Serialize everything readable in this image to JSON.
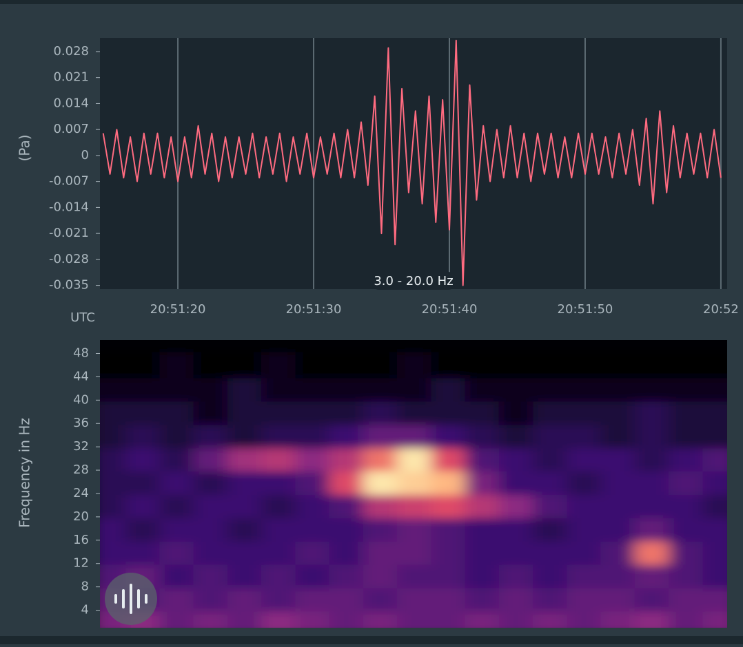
{
  "chart_data": [
    {
      "type": "line",
      "y_label": "(Pa)",
      "x_label": "UTC",
      "annotation": "3.0 - 20.0 Hz",
      "color": "#ff6b80",
      "xlim": [
        14.26,
        60.46
      ],
      "ylim": [
        -0.036,
        0.0317
      ],
      "xticks": [
        {
          "value": 20,
          "label": "20:51:20"
        },
        {
          "value": 30,
          "label": "20:51:30"
        },
        {
          "value": 40,
          "label": "20:51:40"
        },
        {
          "value": 50,
          "label": "20:51:50"
        },
        {
          "value": 60,
          "label": "20:52"
        }
      ],
      "yticks": [
        0.028,
        0.021,
        0.014,
        0.007,
        0,
        -0.007,
        -0.014,
        -0.021,
        -0.028,
        -0.035
      ],
      "grid": true,
      "x": [
        14.5,
        15,
        15.5,
        16,
        16.5,
        17,
        17.5,
        18,
        18.5,
        19,
        19.5,
        20,
        20.5,
        21,
        21.5,
        22,
        22.5,
        23,
        23.5,
        24,
        24.5,
        25,
        25.5,
        26,
        26.5,
        27,
        27.5,
        28,
        28.5,
        29,
        29.5,
        30,
        30.5,
        31,
        31.5,
        32,
        32.5,
        33,
        33.5,
        34,
        34.5,
        35,
        35.5,
        36,
        36.5,
        37,
        37.5,
        38,
        38.5,
        39,
        39.5,
        40,
        40.5,
        41,
        41.5,
        42,
        42.5,
        43,
        43.5,
        44,
        44.5,
        45,
        45.5,
        46,
        46.5,
        47,
        47.5,
        48,
        48.5,
        49,
        49.5,
        50,
        50.5,
        51,
        51.5,
        52,
        52.5,
        53,
        53.5,
        54,
        54.5,
        55,
        55.5,
        56,
        56.5,
        57,
        57.5,
        58,
        58.5,
        59,
        59.5,
        60
      ],
      "values": [
        0.006,
        -0.005,
        0.007,
        -0.006,
        0.005,
        -0.007,
        0.006,
        -0.005,
        0.006,
        -0.006,
        0.005,
        -0.007,
        0.005,
        -0.006,
        0.008,
        -0.005,
        0.006,
        -0.007,
        0.005,
        -0.006,
        0.005,
        -0.005,
        0.006,
        -0.006,
        0.005,
        -0.005,
        0.006,
        -0.007,
        0.005,
        -0.005,
        0.006,
        -0.006,
        0.005,
        -0.005,
        0.006,
        -0.006,
        0.007,
        -0.006,
        0.009,
        -0.008,
        0.016,
        -0.021,
        0.029,
        -0.024,
        0.018,
        -0.01,
        0.012,
        -0.013,
        0.016,
        -0.018,
        0.015,
        -0.02,
        0.031,
        -0.035,
        0.019,
        -0.012,
        0.008,
        -0.007,
        0.007,
        -0.006,
        0.008,
        -0.006,
        0.006,
        -0.007,
        0.006,
        -0.005,
        0.006,
        -0.006,
        0.005,
        -0.006,
        0.006,
        -0.005,
        0.006,
        -0.005,
        0.005,
        -0.006,
        0.006,
        -0.005,
        0.007,
        -0.008,
        0.01,
        -0.013,
        0.012,
        -0.01,
        0.008,
        -0.006,
        0.006,
        -0.005,
        0.006,
        -0.006,
        0.007,
        -0.006
      ]
    },
    {
      "type": "heatmap",
      "y_label": "Frequency in Hz",
      "xlim": [
        14.26,
        60.46
      ],
      "ylim": [
        1,
        50.3
      ],
      "yticks": [
        4,
        8,
        12,
        16,
        20,
        24,
        28,
        32,
        36,
        40,
        44,
        48
      ],
      "colormap": [
        "#000004",
        "#3b0f70",
        "#8c2981",
        "#de4968",
        "#fe9f6d",
        "#fcfdbf"
      ],
      "x": [
        15,
        17.5,
        20,
        22.5,
        25,
        27.5,
        30,
        32.5,
        35,
        37.5,
        40,
        42.5,
        45,
        47.5,
        50,
        52.5,
        55,
        57.5,
        60
      ],
      "y": [
        2,
        6,
        10,
        14,
        18,
        22,
        26,
        30,
        34,
        38,
        42,
        46
      ],
      "z": [
        [
          0.35,
          0.4,
          0.3,
          0.35,
          0.3,
          0.4,
          0.35,
          0.3,
          0.35,
          0.3,
          0.3,
          0.35,
          0.3,
          0.35,
          0.3,
          0.35,
          0.4,
          0.3,
          0.35
        ],
        [
          0.3,
          0.25,
          0.3,
          0.25,
          0.3,
          0.25,
          0.3,
          0.3,
          0.25,
          0.3,
          0.3,
          0.25,
          0.3,
          0.25,
          0.3,
          0.3,
          0.25,
          0.3,
          0.3
        ],
        [
          0.25,
          0.3,
          0.2,
          0.25,
          0.2,
          0.25,
          0.2,
          0.25,
          0.3,
          0.25,
          0.25,
          0.2,
          0.25,
          0.2,
          0.25,
          0.25,
          0.3,
          0.25,
          0.2
        ],
        [
          0.2,
          0.2,
          0.25,
          0.2,
          0.2,
          0.2,
          0.25,
          0.2,
          0.3,
          0.3,
          0.25,
          0.2,
          0.2,
          0.2,
          0.2,
          0.25,
          0.7,
          0.25,
          0.2
        ],
        [
          0.2,
          0.15,
          0.2,
          0.2,
          0.15,
          0.2,
          0.2,
          0.2,
          0.25,
          0.3,
          0.25,
          0.2,
          0.2,
          0.15,
          0.2,
          0.2,
          0.3,
          0.2,
          0.2
        ],
        [
          0.15,
          0.2,
          0.15,
          0.2,
          0.2,
          0.15,
          0.2,
          0.25,
          0.5,
          0.55,
          0.6,
          0.5,
          0.4,
          0.25,
          0.2,
          0.2,
          0.2,
          0.2,
          0.15
        ],
        [
          0.15,
          0.15,
          0.2,
          0.15,
          0.2,
          0.2,
          0.25,
          0.6,
          0.95,
          0.9,
          0.85,
          0.35,
          0.2,
          0.2,
          0.15,
          0.2,
          0.2,
          0.25,
          0.2
        ],
        [
          0.15,
          0.2,
          0.15,
          0.3,
          0.45,
          0.5,
          0.4,
          0.5,
          0.7,
          0.95,
          0.6,
          0.25,
          0.2,
          0.15,
          0.2,
          0.2,
          0.15,
          0.2,
          0.25
        ],
        [
          0.1,
          0.15,
          0.1,
          0.15,
          0.1,
          0.15,
          0.15,
          0.2,
          0.3,
          0.3,
          0.2,
          0.15,
          0.1,
          0.15,
          0.15,
          0.1,
          0.15,
          0.1,
          0.1
        ],
        [
          0.1,
          0.1,
          0.1,
          0.05,
          0.1,
          0.1,
          0.1,
          0.1,
          0.15,
          0.1,
          0.1,
          0.1,
          0.05,
          0.1,
          0.1,
          0.1,
          0.15,
          0.1,
          0.1
        ],
        [
          0.05,
          0.05,
          0.05,
          0.05,
          0.1,
          0.05,
          0.05,
          0.05,
          0.05,
          0.05,
          0.1,
          0.05,
          0.05,
          0.05,
          0.05,
          0.05,
          0.05,
          0.05,
          0.05
        ],
        [
          0,
          0,
          0.05,
          0,
          0,
          0.05,
          0,
          0,
          0,
          0.05,
          0,
          0,
          0,
          0,
          0,
          0,
          0,
          0,
          0
        ]
      ]
    }
  ]
}
